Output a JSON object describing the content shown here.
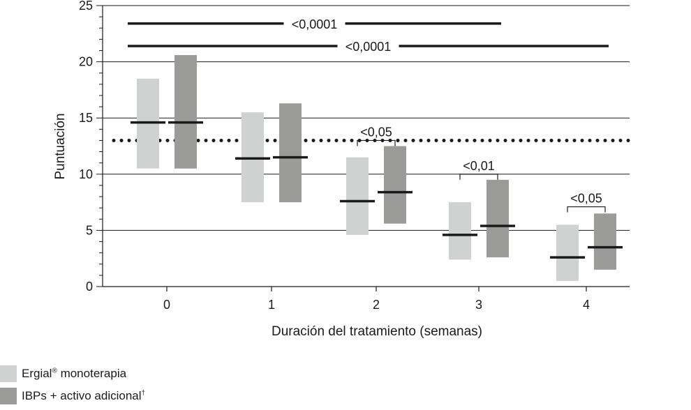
{
  "chart_data": {
    "type": "bar",
    "xlabel": "Duración del tratamiento (semanas)",
    "ylabel": "Puntuación",
    "ylim": [
      0,
      25
    ],
    "yticks": [
      0,
      5,
      10,
      15,
      20,
      25
    ],
    "categories": [
      "0",
      "1",
      "2",
      "3",
      "4"
    ],
    "grid": true,
    "threshold": 13,
    "legend_position": "bottom-left",
    "series": [
      {
        "name": "Ergial® monoterapia",
        "legend_label": "Ergial",
        "legend_sup": "®",
        "legend_suffix": " monoterapia",
        "color": "#d0d2d1",
        "low": [
          10.5,
          7.5,
          4.6,
          2.4,
          0.5
        ],
        "high": [
          18.5,
          15.5,
          11.5,
          7.5,
          5.5
        ],
        "median": [
          14.6,
          11.4,
          7.6,
          4.6,
          2.6
        ]
      },
      {
        "name": "IBPs + activo adicional†",
        "legend_label": "IBPs + activo adicional",
        "legend_sup": "†",
        "legend_suffix": "",
        "color": "#9b9b9a",
        "low": [
          10.5,
          7.5,
          5.6,
          2.6,
          1.5
        ],
        "high": [
          20.6,
          16.3,
          12.5,
          9.5,
          6.5
        ],
        "median": [
          14.6,
          11.5,
          8.4,
          5.4,
          3.5
        ]
      }
    ],
    "annotations": [
      {
        "type": "line",
        "label": "<0,0001",
        "from_category": 0,
        "to_category": 3,
        "y": 23.4
      },
      {
        "type": "line",
        "label": "<0,0001",
        "from_category": 0,
        "to_category": 4,
        "y": 21.4
      },
      {
        "type": "bracket",
        "label": "<0,05",
        "category": 2,
        "y": 13.0
      },
      {
        "type": "bracket",
        "label": "<0,01",
        "category": 3,
        "y": 10.0
      },
      {
        "type": "bracket",
        "label": "<0,05",
        "category": 4,
        "y": 7.1
      }
    ]
  }
}
